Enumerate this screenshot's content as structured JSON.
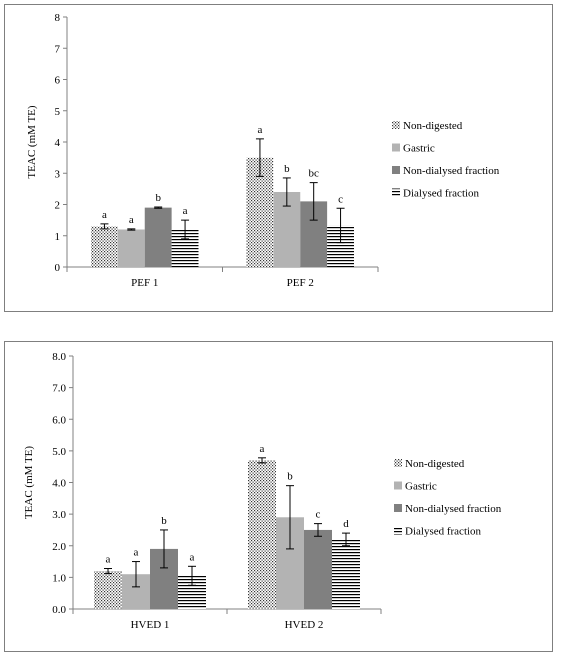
{
  "chart_data": [
    {
      "type": "bar",
      "ylabel": "TEAC (mM TE)",
      "ylim": [
        0,
        8
      ],
      "yticks": [
        "0",
        "1",
        "2",
        "3",
        "4",
        "5",
        "6",
        "7",
        "8"
      ],
      "categories": [
        "PEF 1",
        "PEF 2"
      ],
      "legend_position": "right",
      "series": [
        {
          "name": "Non-digested",
          "pattern": "dots",
          "color": "#ffffff",
          "values": [
            1.3,
            3.5
          ],
          "errors": [
            0.08,
            0.6
          ],
          "letters": [
            "a",
            "a"
          ]
        },
        {
          "name": "Gastric",
          "pattern": "solid",
          "color": "#b3b3b3",
          "values": [
            1.2,
            2.4
          ],
          "errors": [
            0.02,
            0.45
          ],
          "letters": [
            "a",
            "b"
          ]
        },
        {
          "name": "Non-dialysed fraction",
          "pattern": "solid",
          "color": "#808080",
          "values": [
            1.9,
            2.1
          ],
          "errors": [
            0.02,
            0.6
          ],
          "letters": [
            "b",
            "bc"
          ]
        },
        {
          "name": "Dialysed fraction",
          "pattern": "hlines",
          "color": "#ffffff",
          "values": [
            1.2,
            1.33
          ],
          "errors": [
            0.3,
            0.55
          ],
          "letters": [
            "a",
            "c"
          ]
        }
      ]
    },
    {
      "type": "bar",
      "ylabel": "TEAC (mM TE)",
      "ylim": [
        0,
        8
      ],
      "yticks": [
        "0.0",
        "1.0",
        "2.0",
        "3.0",
        "4.0",
        "5.0",
        "6.0",
        "7.0",
        "8.0"
      ],
      "categories": [
        "HVED 1",
        "HVED 2"
      ],
      "legend_position": "right",
      "series": [
        {
          "name": "Non-digested",
          "pattern": "dots",
          "color": "#ffffff",
          "values": [
            1.2,
            4.7
          ],
          "errors": [
            0.08,
            0.08
          ],
          "letters": [
            "a",
            "a"
          ]
        },
        {
          "name": "Gastric",
          "pattern": "solid",
          "color": "#b3b3b3",
          "values": [
            1.1,
            2.9
          ],
          "errors": [
            0.4,
            1.0
          ],
          "letters": [
            "a",
            "b"
          ]
        },
        {
          "name": "Non-dialysed fraction",
          "pattern": "solid",
          "color": "#808080",
          "values": [
            1.9,
            2.5
          ],
          "errors": [
            0.6,
            0.2
          ],
          "letters": [
            "b",
            "c"
          ]
        },
        {
          "name": "Dialysed fraction",
          "pattern": "hlines",
          "color": "#ffffff",
          "values": [
            1.05,
            2.2
          ],
          "errors": [
            0.3,
            0.2
          ],
          "letters": [
            "a",
            "d"
          ]
        }
      ]
    }
  ]
}
